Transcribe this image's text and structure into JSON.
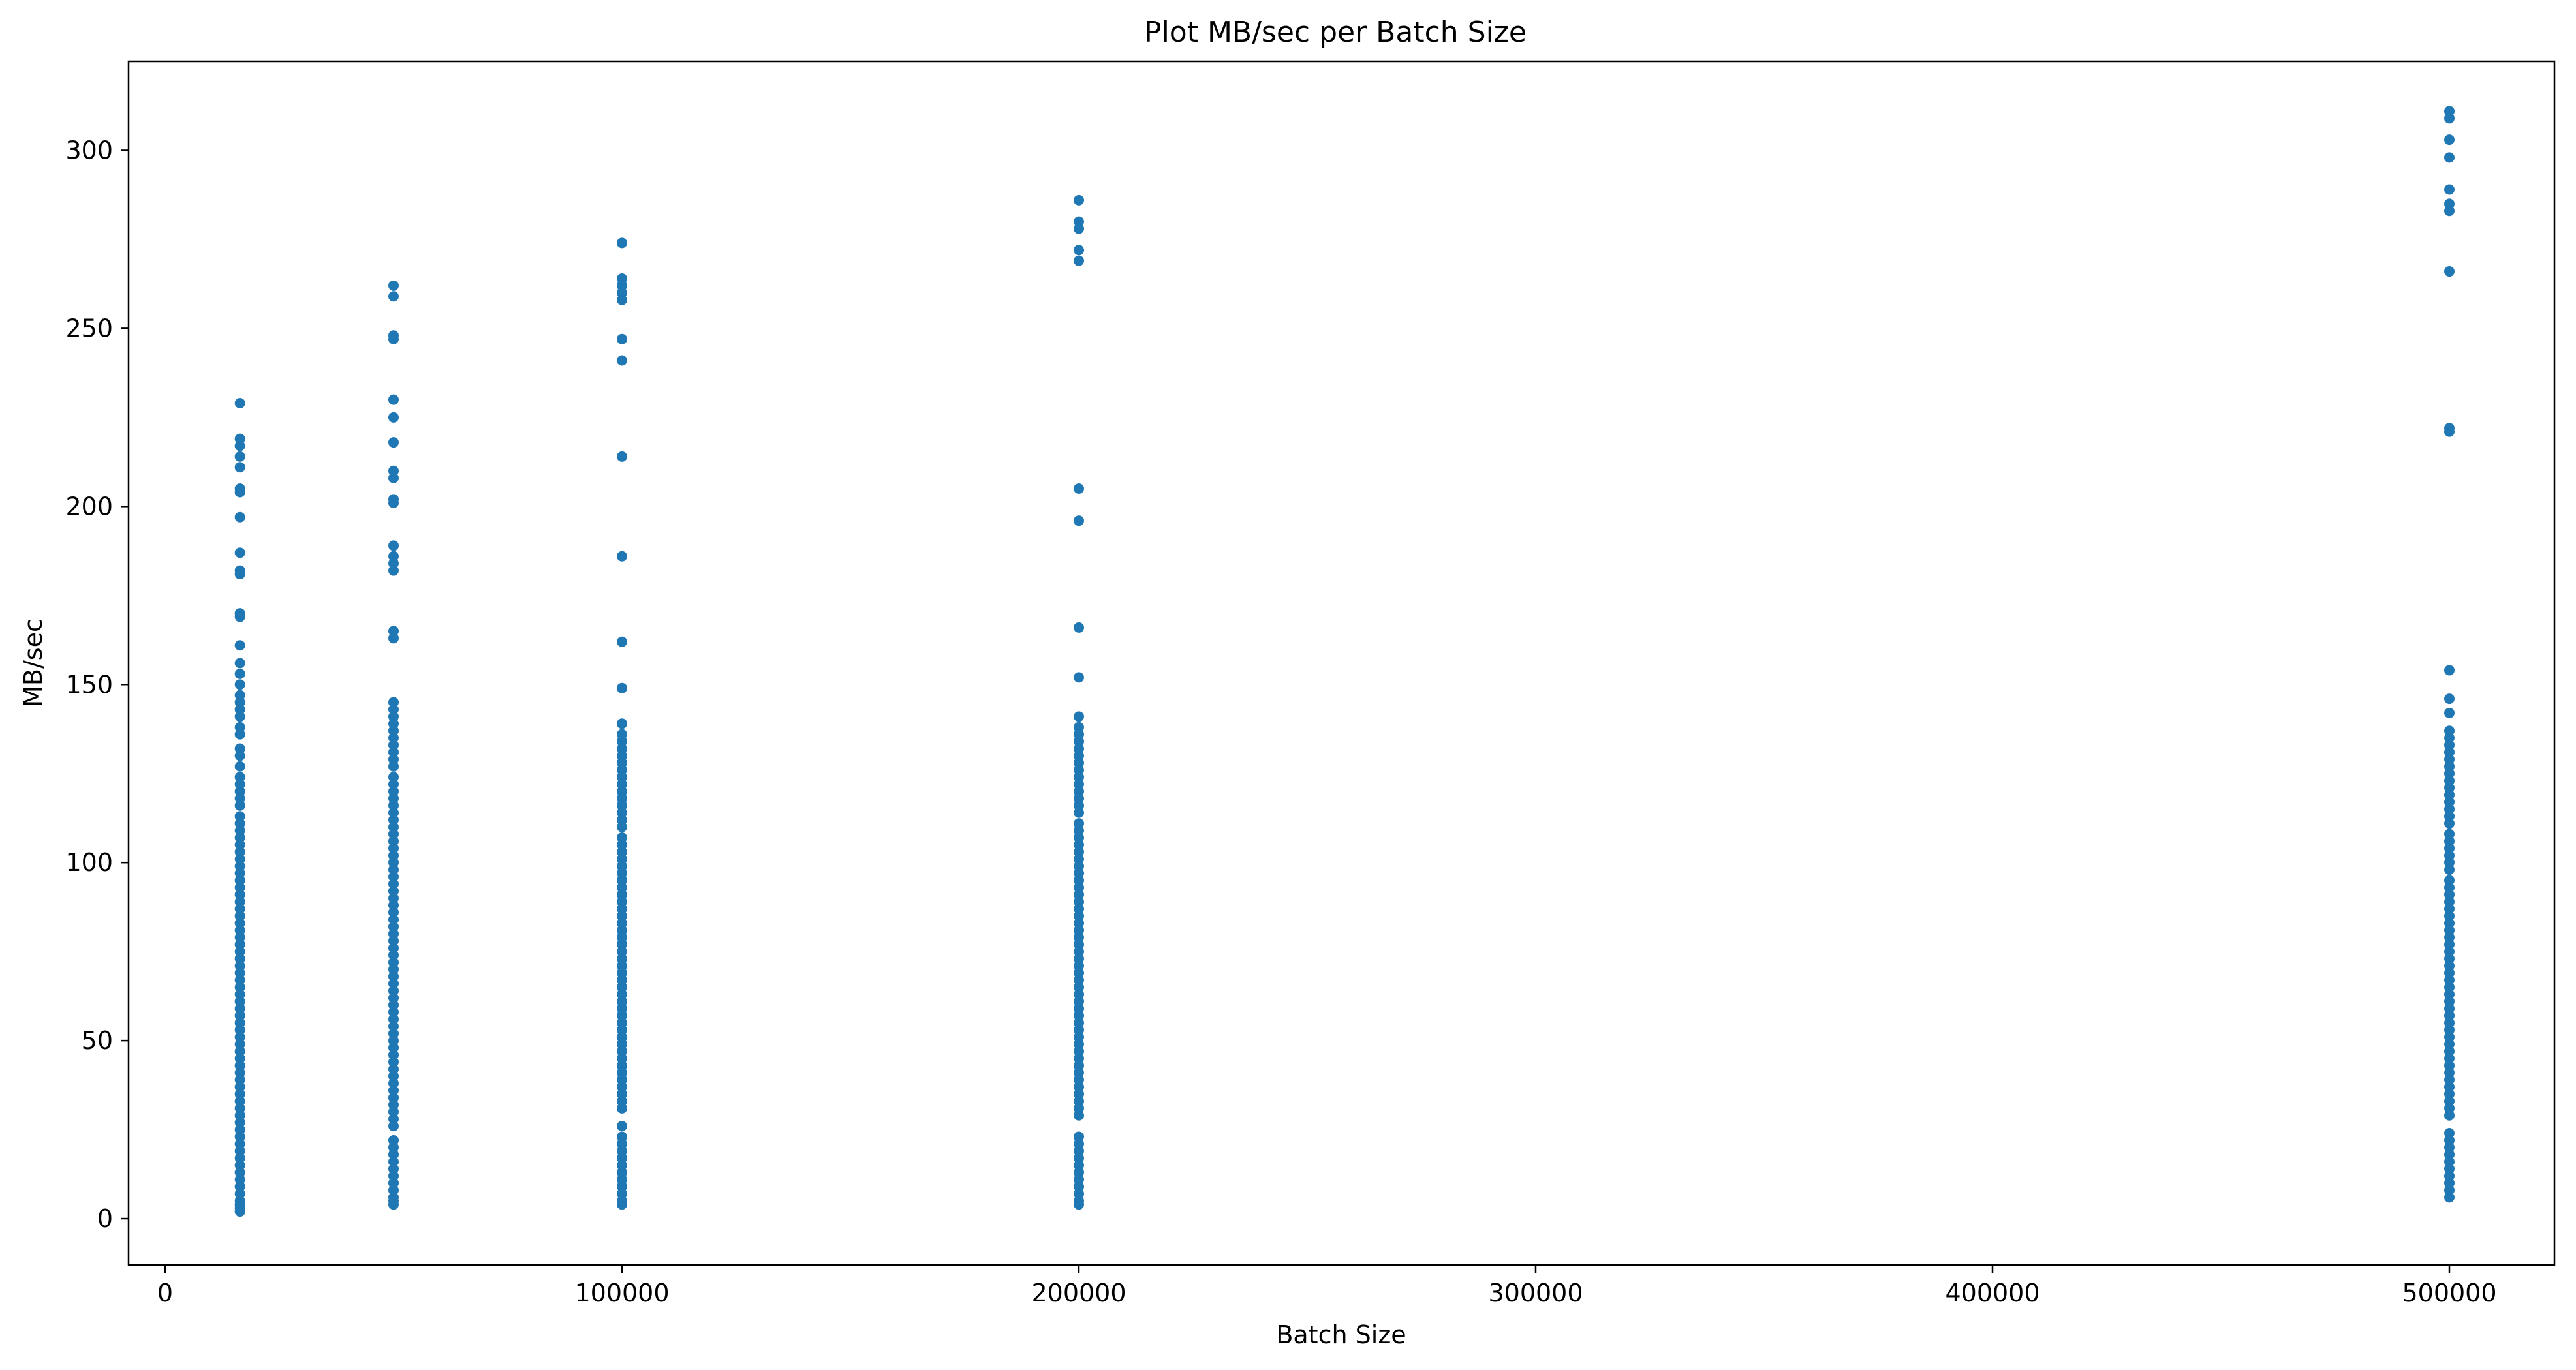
{
  "chart_data": {
    "type": "scatter",
    "title": "Plot MB/sec per Batch Size",
    "xlabel": "Batch Size",
    "ylabel": "MB/sec",
    "xlim": [
      -8000,
      523000
    ],
    "ylim": [
      -13,
      325
    ],
    "x_ticks": [
      0,
      100000,
      200000,
      300000,
      400000,
      500000
    ],
    "y_ticks": [
      0,
      50,
      100,
      150,
      200,
      250,
      300
    ],
    "grid": false,
    "legend": "none",
    "marker_color": "#1f77b4",
    "series": [
      {
        "x_value": 16384,
        "y": [
          229,
          219,
          217,
          214,
          211,
          205,
          204,
          197,
          187,
          182,
          181,
          170,
          169,
          161,
          156,
          153,
          150,
          147,
          145,
          143,
          141,
          138,
          136,
          132,
          130,
          127,
          124,
          122,
          120,
          118,
          116,
          113,
          111,
          109,
          107,
          105,
          103,
          101,
          99,
          97,
          95,
          93,
          91,
          89,
          87,
          85,
          83,
          81,
          79,
          77,
          75,
          73,
          71,
          69,
          67,
          65,
          63,
          61,
          59,
          57,
          55,
          53,
          51,
          49,
          47,
          45,
          43,
          41,
          39,
          37,
          35,
          33,
          31,
          29,
          27,
          25,
          23,
          21,
          19,
          17,
          15,
          13,
          11,
          9,
          7,
          5,
          4,
          3,
          2
        ]
      },
      {
        "x_value": 50000,
        "y": [
          262,
          259,
          248,
          247,
          230,
          225,
          218,
          210,
          208,
          202,
          201,
          189,
          186,
          184,
          182,
          165,
          163,
          145,
          143,
          141,
          139,
          137,
          135,
          133,
          131,
          129,
          127,
          124,
          122,
          120,
          118,
          116,
          114,
          112,
          110,
          108,
          106,
          104,
          102,
          100,
          98,
          96,
          94,
          92,
          90,
          88,
          86,
          84,
          82,
          80,
          78,
          76,
          74,
          72,
          70,
          68,
          66,
          64,
          62,
          60,
          58,
          56,
          54,
          52,
          50,
          48,
          46,
          44,
          42,
          40,
          38,
          36,
          34,
          32,
          30,
          28,
          26,
          22,
          20,
          18,
          16,
          14,
          12,
          10,
          8,
          6,
          5,
          4
        ]
      },
      {
        "x_value": 100000,
        "y": [
          274,
          264,
          262,
          260,
          258,
          247,
          241,
          214,
          186,
          162,
          149,
          139,
          136,
          134,
          132,
          130,
          128,
          126,
          124,
          122,
          120,
          118,
          116,
          114,
          112,
          110,
          107,
          105,
          103,
          101,
          99,
          97,
          95,
          93,
          91,
          89,
          87,
          85,
          83,
          81,
          79,
          77,
          75,
          73,
          71,
          69,
          67,
          65,
          63,
          61,
          59,
          57,
          55,
          53,
          51,
          49,
          47,
          45,
          43,
          41,
          39,
          37,
          35,
          33,
          31,
          26,
          23,
          21,
          19,
          17,
          15,
          13,
          11,
          9,
          7,
          5,
          4
        ]
      },
      {
        "x_value": 200000,
        "y": [
          286,
          280,
          278,
          272,
          269,
          205,
          196,
          166,
          152,
          141,
          138,
          136,
          134,
          132,
          130,
          128,
          126,
          124,
          122,
          120,
          118,
          116,
          114,
          111,
          109,
          107,
          105,
          103,
          101,
          99,
          97,
          95,
          93,
          91,
          89,
          87,
          85,
          83,
          81,
          79,
          77,
          75,
          73,
          71,
          69,
          67,
          65,
          63,
          61,
          59,
          57,
          55,
          53,
          51,
          49,
          47,
          45,
          43,
          41,
          39,
          37,
          35,
          33,
          31,
          29,
          23,
          21,
          19,
          17,
          15,
          13,
          11,
          9,
          7,
          5,
          4
        ]
      },
      {
        "x_value": 500000,
        "y": [
          311,
          309,
          303,
          298,
          289,
          285,
          283,
          266,
          222,
          221,
          154,
          146,
          142,
          137,
          135,
          133,
          131,
          129,
          127,
          125,
          123,
          121,
          119,
          117,
          115,
          113,
          111,
          108,
          106,
          104,
          102,
          100,
          98,
          95,
          93,
          91,
          89,
          87,
          85,
          83,
          81,
          79,
          77,
          75,
          73,
          71,
          69,
          67,
          65,
          63,
          61,
          59,
          57,
          55,
          53,
          51,
          49,
          47,
          45,
          43,
          41,
          39,
          37,
          35,
          33,
          31,
          29,
          24,
          22,
          20,
          18,
          16,
          14,
          12,
          10,
          8,
          6
        ]
      }
    ]
  }
}
